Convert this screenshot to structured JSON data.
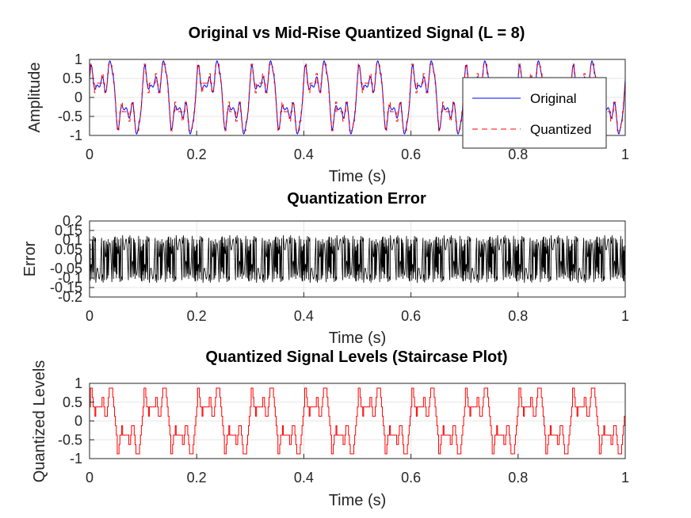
{
  "chart_data": [
    {
      "type": "line",
      "title": "Original vs Mid-Rise Quantized Signal (L = 8)",
      "xlabel": "Time (s)",
      "ylabel": "Amplitude",
      "xlim": [
        0,
        1
      ],
      "ylim": [
        -1,
        1
      ],
      "xticks": [
        "0",
        "0.2",
        "0.4",
        "0.6",
        "0.8",
        "1"
      ],
      "yticks": [
        "-1",
        "-0.5",
        "0",
        "0.5",
        "1"
      ],
      "grid": true,
      "legend": {
        "placement": "top-right",
        "entries": [
          "Original",
          "Quantized"
        ]
      },
      "series": [
        {
          "name": "Original",
          "color": "#0000ff",
          "style": "solid",
          "description_values": {
            "x": [
              0.0,
              0.005,
              0.01,
              0.015,
              0.02,
              0.025,
              0.03,
              0.035,
              0.04,
              0.045,
              0.05,
              0.055,
              0.06,
              0.065,
              0.07,
              0.075,
              0.08,
              0.085,
              0.09,
              0.095,
              0.1
            ],
            "y": [
              0.0,
              0.29,
              0.55,
              0.84,
              0.47,
              -0.12,
              -0.45,
              -0.15,
              0.33,
              0.6,
              0.31,
              -0.21,
              -0.6,
              -0.3,
              0.06,
              0.58,
              0.38,
              -0.17,
              -0.58,
              -0.88,
              0.0
            ]
          }
        },
        {
          "name": "Quantized",
          "color": "#ff0000",
          "style": "dashed",
          "levels": [
            -0.875,
            -0.625,
            -0.375,
            -0.125,
            0.125,
            0.375,
            0.625,
            0.875
          ]
        }
      ]
    },
    {
      "type": "line",
      "title": "Quantization Error",
      "xlabel": "Time (s)",
      "ylabel": "Error",
      "xlim": [
        0,
        1
      ],
      "ylim": [
        -0.2,
        0.2
      ],
      "xticks": [
        "0",
        "0.2",
        "0.4",
        "0.6",
        "0.8",
        "1"
      ],
      "yticks": [
        "-0.2",
        "-0.15",
        "-0.1",
        "-0.05",
        "0",
        "0.05",
        "0.1",
        "0.15",
        "0.2"
      ],
      "grid": true,
      "series": [
        {
          "color": "#000000",
          "range": [
            -0.125,
            0.125
          ]
        }
      ]
    },
    {
      "type": "line",
      "title": "Quantized Signal Levels (Staircase Plot)",
      "xlabel": "Time (s)",
      "ylabel": "Quantized Levels",
      "xlim": [
        0,
        1
      ],
      "ylim": [
        -1,
        1
      ],
      "xticks": [
        "0",
        "0.2",
        "0.4",
        "0.6",
        "0.8",
        "1"
      ],
      "yticks": [
        "-1",
        "-0.5",
        "0",
        "0.5",
        "1"
      ],
      "grid": true,
      "series": [
        {
          "color": "#ff0000",
          "style": "stairs",
          "levels": [
            -0.875,
            -0.625,
            -0.375,
            -0.125,
            0.125,
            0.375,
            0.625,
            0.875
          ]
        }
      ]
    }
  ]
}
